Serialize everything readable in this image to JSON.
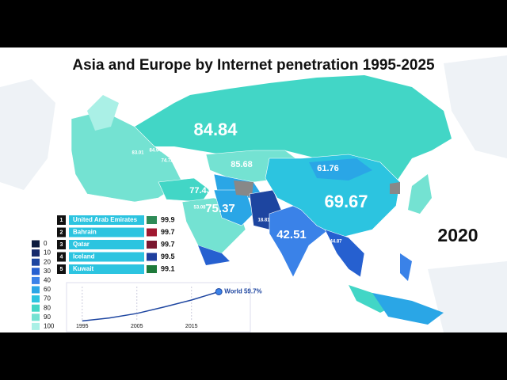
{
  "title": "Asia and Europe by Internet penetration 1995-2025",
  "year": "2020",
  "map_labels": [
    {
      "text": "84.84",
      "size": "big"
    },
    {
      "text": "69.67",
      "size": "big"
    },
    {
      "text": "42.51",
      "size": "mid"
    },
    {
      "text": "75.37",
      "size": "mid"
    },
    {
      "text": "85.68",
      "size": "small"
    },
    {
      "text": "61.76",
      "size": "small"
    },
    {
      "text": "77.43",
      "size": "small"
    },
    {
      "text": "74.72",
      "size": "tiny"
    },
    {
      "text": "53.08",
      "size": "tiny"
    },
    {
      "text": "83.01",
      "size": "tiny"
    },
    {
      "text": "84.94",
      "size": "tiny"
    },
    {
      "text": "18.81",
      "size": "tiny"
    },
    {
      "text": "44.87",
      "size": "tiny"
    }
  ],
  "ranking": [
    {
      "rank": "1",
      "country": "United Arab Emirates",
      "value": "99.9"
    },
    {
      "rank": "2",
      "country": "Bahrain",
      "value": "99.7"
    },
    {
      "rank": "3",
      "country": "Qatar",
      "value": "99.7"
    },
    {
      "rank": "4",
      "country": "Iceland",
      "value": "99.5"
    },
    {
      "rank": "5",
      "country": "Kuwait",
      "value": "99.1"
    }
  ],
  "legend": [
    {
      "label": "0",
      "color": "#0d1b3e"
    },
    {
      "label": "10",
      "color": "#15296b"
    },
    {
      "label": "20",
      "color": "#1d45a0"
    },
    {
      "label": "30",
      "color": "#2660d0"
    },
    {
      "label": "40",
      "color": "#3a82e8"
    },
    {
      "label": "60",
      "color": "#2aa6e6"
    },
    {
      "label": "70",
      "color": "#2cc4e0"
    },
    {
      "label": "80",
      "color": "#42d6c6"
    },
    {
      "label": "90",
      "color": "#74e2d2"
    },
    {
      "label": "100",
      "color": "#aaf0e6"
    }
  ],
  "world_trend": {
    "label": "World 59.7%",
    "years": [
      1995,
      2000,
      2005,
      2010,
      2015,
      2020
    ],
    "values": [
      1,
      7,
      16,
      29,
      43,
      59.7
    ],
    "xticks": [
      1995,
      2005,
      2015
    ],
    "xlim": [
      1993,
      2022
    ],
    "ylim": [
      0,
      70
    ]
  }
}
